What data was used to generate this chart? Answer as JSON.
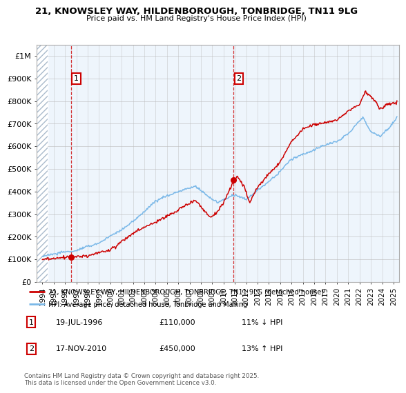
{
  "title_line1": "21, KNOWSLEY WAY, HILDENBOROUGH, TONBRIDGE, TN11 9LG",
  "title_line2": "Price paid vs. HM Land Registry's House Price Index (HPI)",
  "xmin": 1993.5,
  "xmax": 2025.5,
  "ymin": 0,
  "ymax": 1050000,
  "yticks": [
    0,
    100000,
    200000,
    300000,
    400000,
    500000,
    600000,
    700000,
    800000,
    900000,
    1000000
  ],
  "ytick_labels": [
    "£0",
    "£100K",
    "£200K",
    "£300K",
    "£400K",
    "£500K",
    "£600K",
    "£700K",
    "£800K",
    "£900K",
    "£1M"
  ],
  "xticks": [
    1994,
    1995,
    1996,
    1997,
    1998,
    1999,
    2000,
    2001,
    2002,
    2003,
    2004,
    2005,
    2006,
    2007,
    2008,
    2009,
    2010,
    2011,
    2012,
    2013,
    2014,
    2015,
    2016,
    2017,
    2018,
    2019,
    2020,
    2021,
    2022,
    2023,
    2024,
    2025
  ],
  "hpi_color": "#7ab8e8",
  "price_color": "#cc0000",
  "sale1_x": 1996.54,
  "sale1_y": 110000,
  "sale1_label": "1",
  "sale2_x": 2010.88,
  "sale2_y": 450000,
  "sale2_label": "2",
  "annotation1_date": "19-JUL-1996",
  "annotation1_price": "£110,000",
  "annotation1_hpi": "11% ↓ HPI",
  "annotation2_date": "17-NOV-2010",
  "annotation2_price": "£450,000",
  "annotation2_hpi": "13% ↑ HPI",
  "legend_line1": "21, KNOWSLEY WAY, HILDENBOROUGH, TONBRIDGE, TN11 9LG (detached house)",
  "legend_line2": "HPI: Average price, detached house, Tonbridge and Malling",
  "footer": "Contains HM Land Registry data © Crown copyright and database right 2025.\nThis data is licensed under the Open Government Licence v3.0.",
  "bg_color": "#eef5fc",
  "hatch_color": "#c8d8e8",
  "grid_color": "#bbbbbb"
}
